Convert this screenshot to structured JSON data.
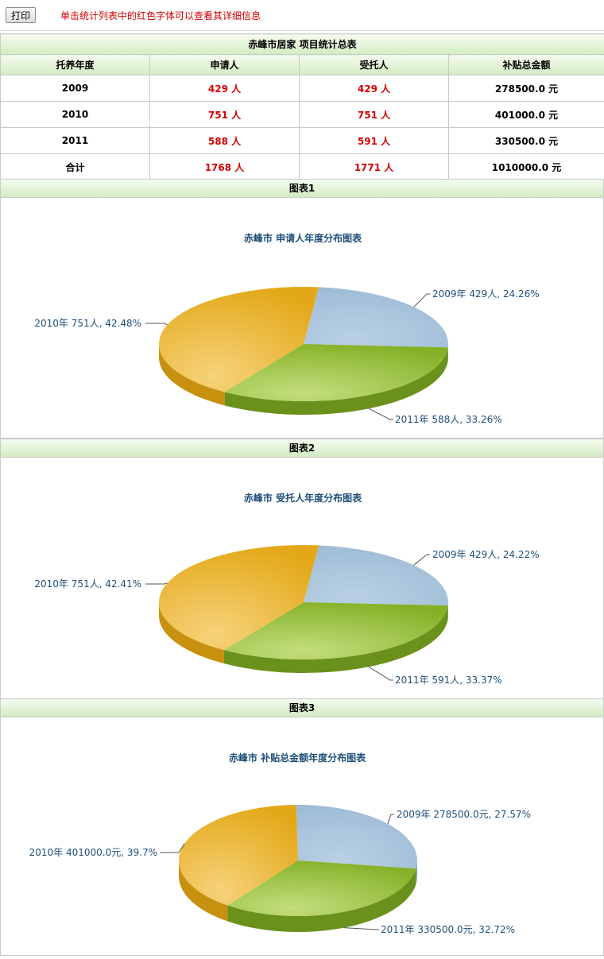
{
  "toolbar": {
    "print_label": "打印",
    "hint": "单击统计列表中的红色字体可以查看其详细信息"
  },
  "summary": {
    "title": "赤峰市居家 项目统计总表",
    "headers": [
      "托养年度",
      "申请人",
      "受托人",
      "补贴总金额"
    ],
    "rows": [
      {
        "year": "2009",
        "applicants": "429 人",
        "trustees": "429 人",
        "amount": "278500.0 元"
      },
      {
        "year": "2010",
        "applicants": "751 人",
        "trustees": "751 人",
        "amount": "401000.0 元"
      },
      {
        "year": "2011",
        "applicants": "588 人",
        "trustees": "591 人",
        "amount": "330500.0 元"
      },
      {
        "year": "合计",
        "applicants": "1768 人",
        "trustees": "1771 人",
        "amount": "1010000.0 元"
      }
    ]
  },
  "colors": {
    "2009": "#9dbbd6",
    "2010": "#e3a817",
    "2011": "#84b026",
    "red_text": "#d40000",
    "chart_title": "#1f4e79"
  },
  "chart_data": [
    {
      "type": "pie",
      "section_title": "图表1",
      "title": "赤峰市 申请人年度分布图表",
      "slices": [
        {
          "category": "2009",
          "value": 429,
          "percent": 24.26,
          "label": "2009年 429人, 24.26%"
        },
        {
          "category": "2010",
          "value": 751,
          "percent": 42.48,
          "label": "2010年 751人, 42.48%"
        },
        {
          "category": "2011",
          "value": 588,
          "percent": 33.26,
          "label": "2011年 588人, 33.26%"
        }
      ]
    },
    {
      "type": "pie",
      "section_title": "图表2",
      "title": "赤峰市 受托人年度分布图表",
      "slices": [
        {
          "category": "2009",
          "value": 429,
          "percent": 24.22,
          "label": "2009年 429人, 24.22%"
        },
        {
          "category": "2010",
          "value": 751,
          "percent": 42.41,
          "label": "2010年 751人, 42.41%"
        },
        {
          "category": "2011",
          "value": 591,
          "percent": 33.37,
          "label": "2011年 591人, 33.37%"
        }
      ]
    },
    {
      "type": "pie",
      "section_title": "图表3",
      "title": "赤峰市 补贴总金额年度分布图表",
      "slices": [
        {
          "category": "2009",
          "value": 278500.0,
          "percent": 27.57,
          "label": "2009年 278500.0元, 27.57%"
        },
        {
          "category": "2010",
          "value": 401000.0,
          "percent": 39.7,
          "label": "2010年 401000.0元, 39.7%"
        },
        {
          "category": "2011",
          "value": 330500.0,
          "percent": 32.72,
          "label": "2011年 330500.0元, 32.72%"
        }
      ]
    }
  ]
}
